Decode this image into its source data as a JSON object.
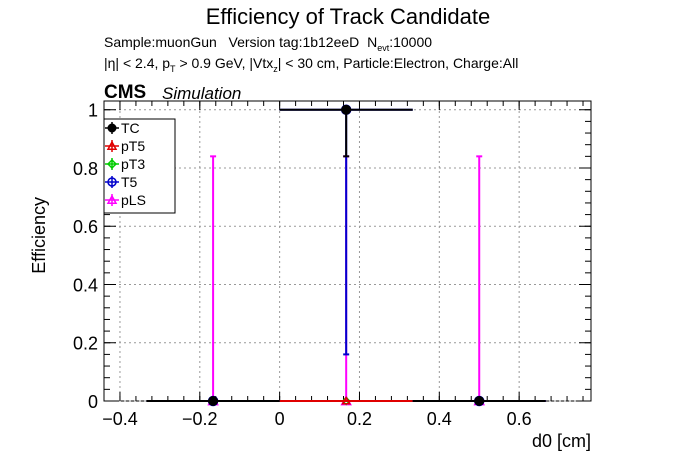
{
  "header": {
    "title": "Efficiency of Track Candidate",
    "line1_sample": "Sample:muonGun",
    "line1_version": "Version tag:1b12eeD",
    "line1_nevt": "N",
    "line1_nevt_sub": "evt",
    "line1_nevt_value": ":10000",
    "line2_eta": "|η| < 2.4, p",
    "line2_pt_sub": "T",
    "line2_pt": "> 0.9 GeV, |Vtx",
    "line2_vtx_sub": "z",
    "line2_rest": "| < 30 cm, Particle:Electron, Charge:All",
    "cms": "CMS",
    "simulation": "Simulation"
  },
  "colors": {
    "TC": "#000000",
    "pT5": "#e00000",
    "pT3": "#00cc00",
    "T5": "#0000cc",
    "pLS": "#ff00ff",
    "grid": "#999999",
    "axis": "#000000"
  },
  "chart_data": {
    "type": "scatter",
    "xlabel": "d0 [cm]",
    "ylabel": "Efficiency",
    "xlim": [
      -0.44,
      0.78
    ],
    "ylim": [
      0,
      1.03
    ],
    "xticks": [
      -0.4,
      -0.2,
      0,
      0.2,
      0.4,
      0.6
    ],
    "xtick_labels": [
      "−0.4",
      "−0.2",
      "0",
      "0.2",
      "0.4",
      "0.6"
    ],
    "yticks": [
      0,
      0.2,
      0.4,
      0.6,
      0.8,
      1
    ],
    "ytick_labels": [
      "0",
      "0.2",
      "0.4",
      "0.6",
      "0.8",
      "1"
    ],
    "grid": true,
    "legend_position": "top-left",
    "series": [
      {
        "name": "TC",
        "marker": "circle-filled",
        "points": [
          {
            "x": -0.1667,
            "y": 0,
            "xerr": 0.1667,
            "ylo": 0,
            "yhi": 0
          },
          {
            "x": 0.1667,
            "y": 1,
            "xerr": 0.1667,
            "ylo": 0.84,
            "yhi": 1
          },
          {
            "x": 0.5,
            "y": 0,
            "xerr": 0.1667,
            "ylo": 0,
            "yhi": 0
          }
        ]
      },
      {
        "name": "pT5",
        "marker": "triangle-open",
        "points": [
          {
            "x": 0.1667,
            "y": 0,
            "xerr": 0.1667,
            "ylo": 0,
            "yhi": 0
          }
        ]
      },
      {
        "name": "pT3",
        "marker": "diamond-open",
        "points": [
          {
            "x": 0.1667,
            "y": 0,
            "xerr": 0.1667,
            "ylo": 0,
            "yhi": 0
          }
        ]
      },
      {
        "name": "T5",
        "marker": "circle-open",
        "points": [
          {
            "x": -0.1667,
            "y": 0,
            "xerr": 0.1667,
            "ylo": 0,
            "yhi": 0
          },
          {
            "x": 0.1667,
            "y": 1,
            "xerr": 0.1667,
            "ylo": 0.16,
            "yhi": 1
          },
          {
            "x": 0.5,
            "y": 0,
            "xerr": 0.1667,
            "ylo": 0,
            "yhi": 0
          }
        ]
      },
      {
        "name": "pLS",
        "marker": "triangle-open",
        "points": [
          {
            "x": -0.1667,
            "y": 0,
            "xerr": 0.1667,
            "ylo": 0,
            "yhi": 0.84
          },
          {
            "x": 0.1667,
            "y": 0,
            "xerr": 0.1667,
            "ylo": 0,
            "yhi": 0.84
          },
          {
            "x": 0.5,
            "y": 0,
            "xerr": 0.1667,
            "ylo": 0,
            "yhi": 0.84
          }
        ]
      }
    ]
  }
}
